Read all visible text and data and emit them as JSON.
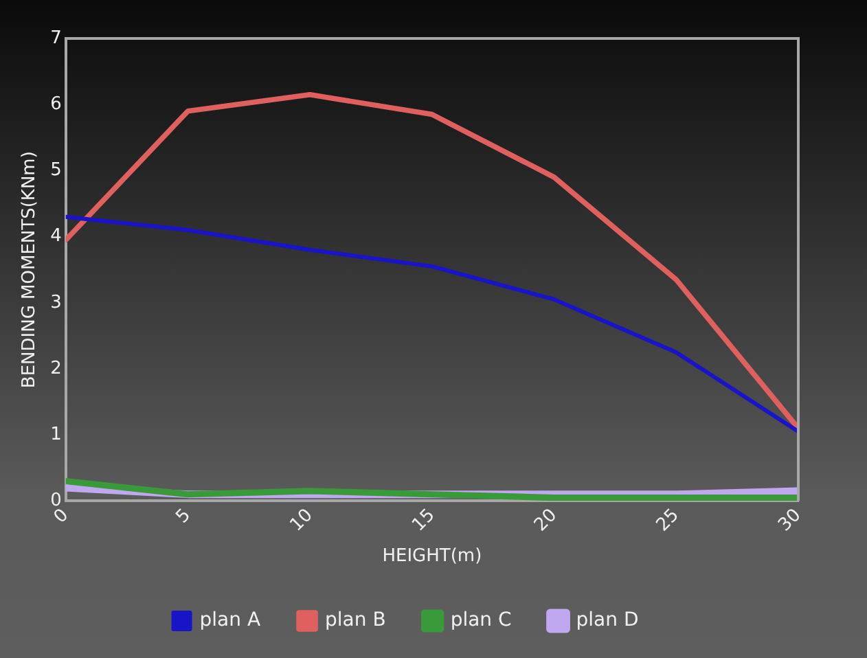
{
  "chart_data": {
    "type": "line",
    "xlabel": "HEIGHT(m)",
    "ylabel": "BENDING MOMENTS(KNm)",
    "x": [
      0,
      5,
      10,
      15,
      20,
      25,
      30
    ],
    "series": [
      {
        "name": "plan A",
        "color": "#1a14c8",
        "values": [
          4.3,
          4.1,
          3.8,
          3.55,
          3.05,
          2.25,
          1.05
        ]
      },
      {
        "name": "plan B",
        "color": "#e06060",
        "values": [
          3.95,
          5.9,
          6.15,
          5.85,
          4.9,
          3.35,
          1.1
        ]
      },
      {
        "name": "plan C",
        "color": "#3a9a3a",
        "values": [
          0.3,
          0.1,
          0.15,
          0.1,
          0.05,
          0.05,
          0.05
        ]
      },
      {
        "name": "plan D",
        "color": "#c0a8f0",
        "values": [
          0.2,
          0.1,
          0.1,
          0.1,
          0.1,
          0.1,
          0.15
        ]
      }
    ],
    "xlim": [
      0,
      30
    ],
    "xticks": [
      0,
      5,
      10,
      15,
      20,
      25,
      30
    ],
    "ylim": [
      0,
      7
    ],
    "yticks": [
      0,
      1,
      2,
      3,
      4,
      5,
      6,
      7
    ],
    "grid": false,
    "legend": "bottom",
    "marker": "none",
    "line_style": "solid"
  }
}
